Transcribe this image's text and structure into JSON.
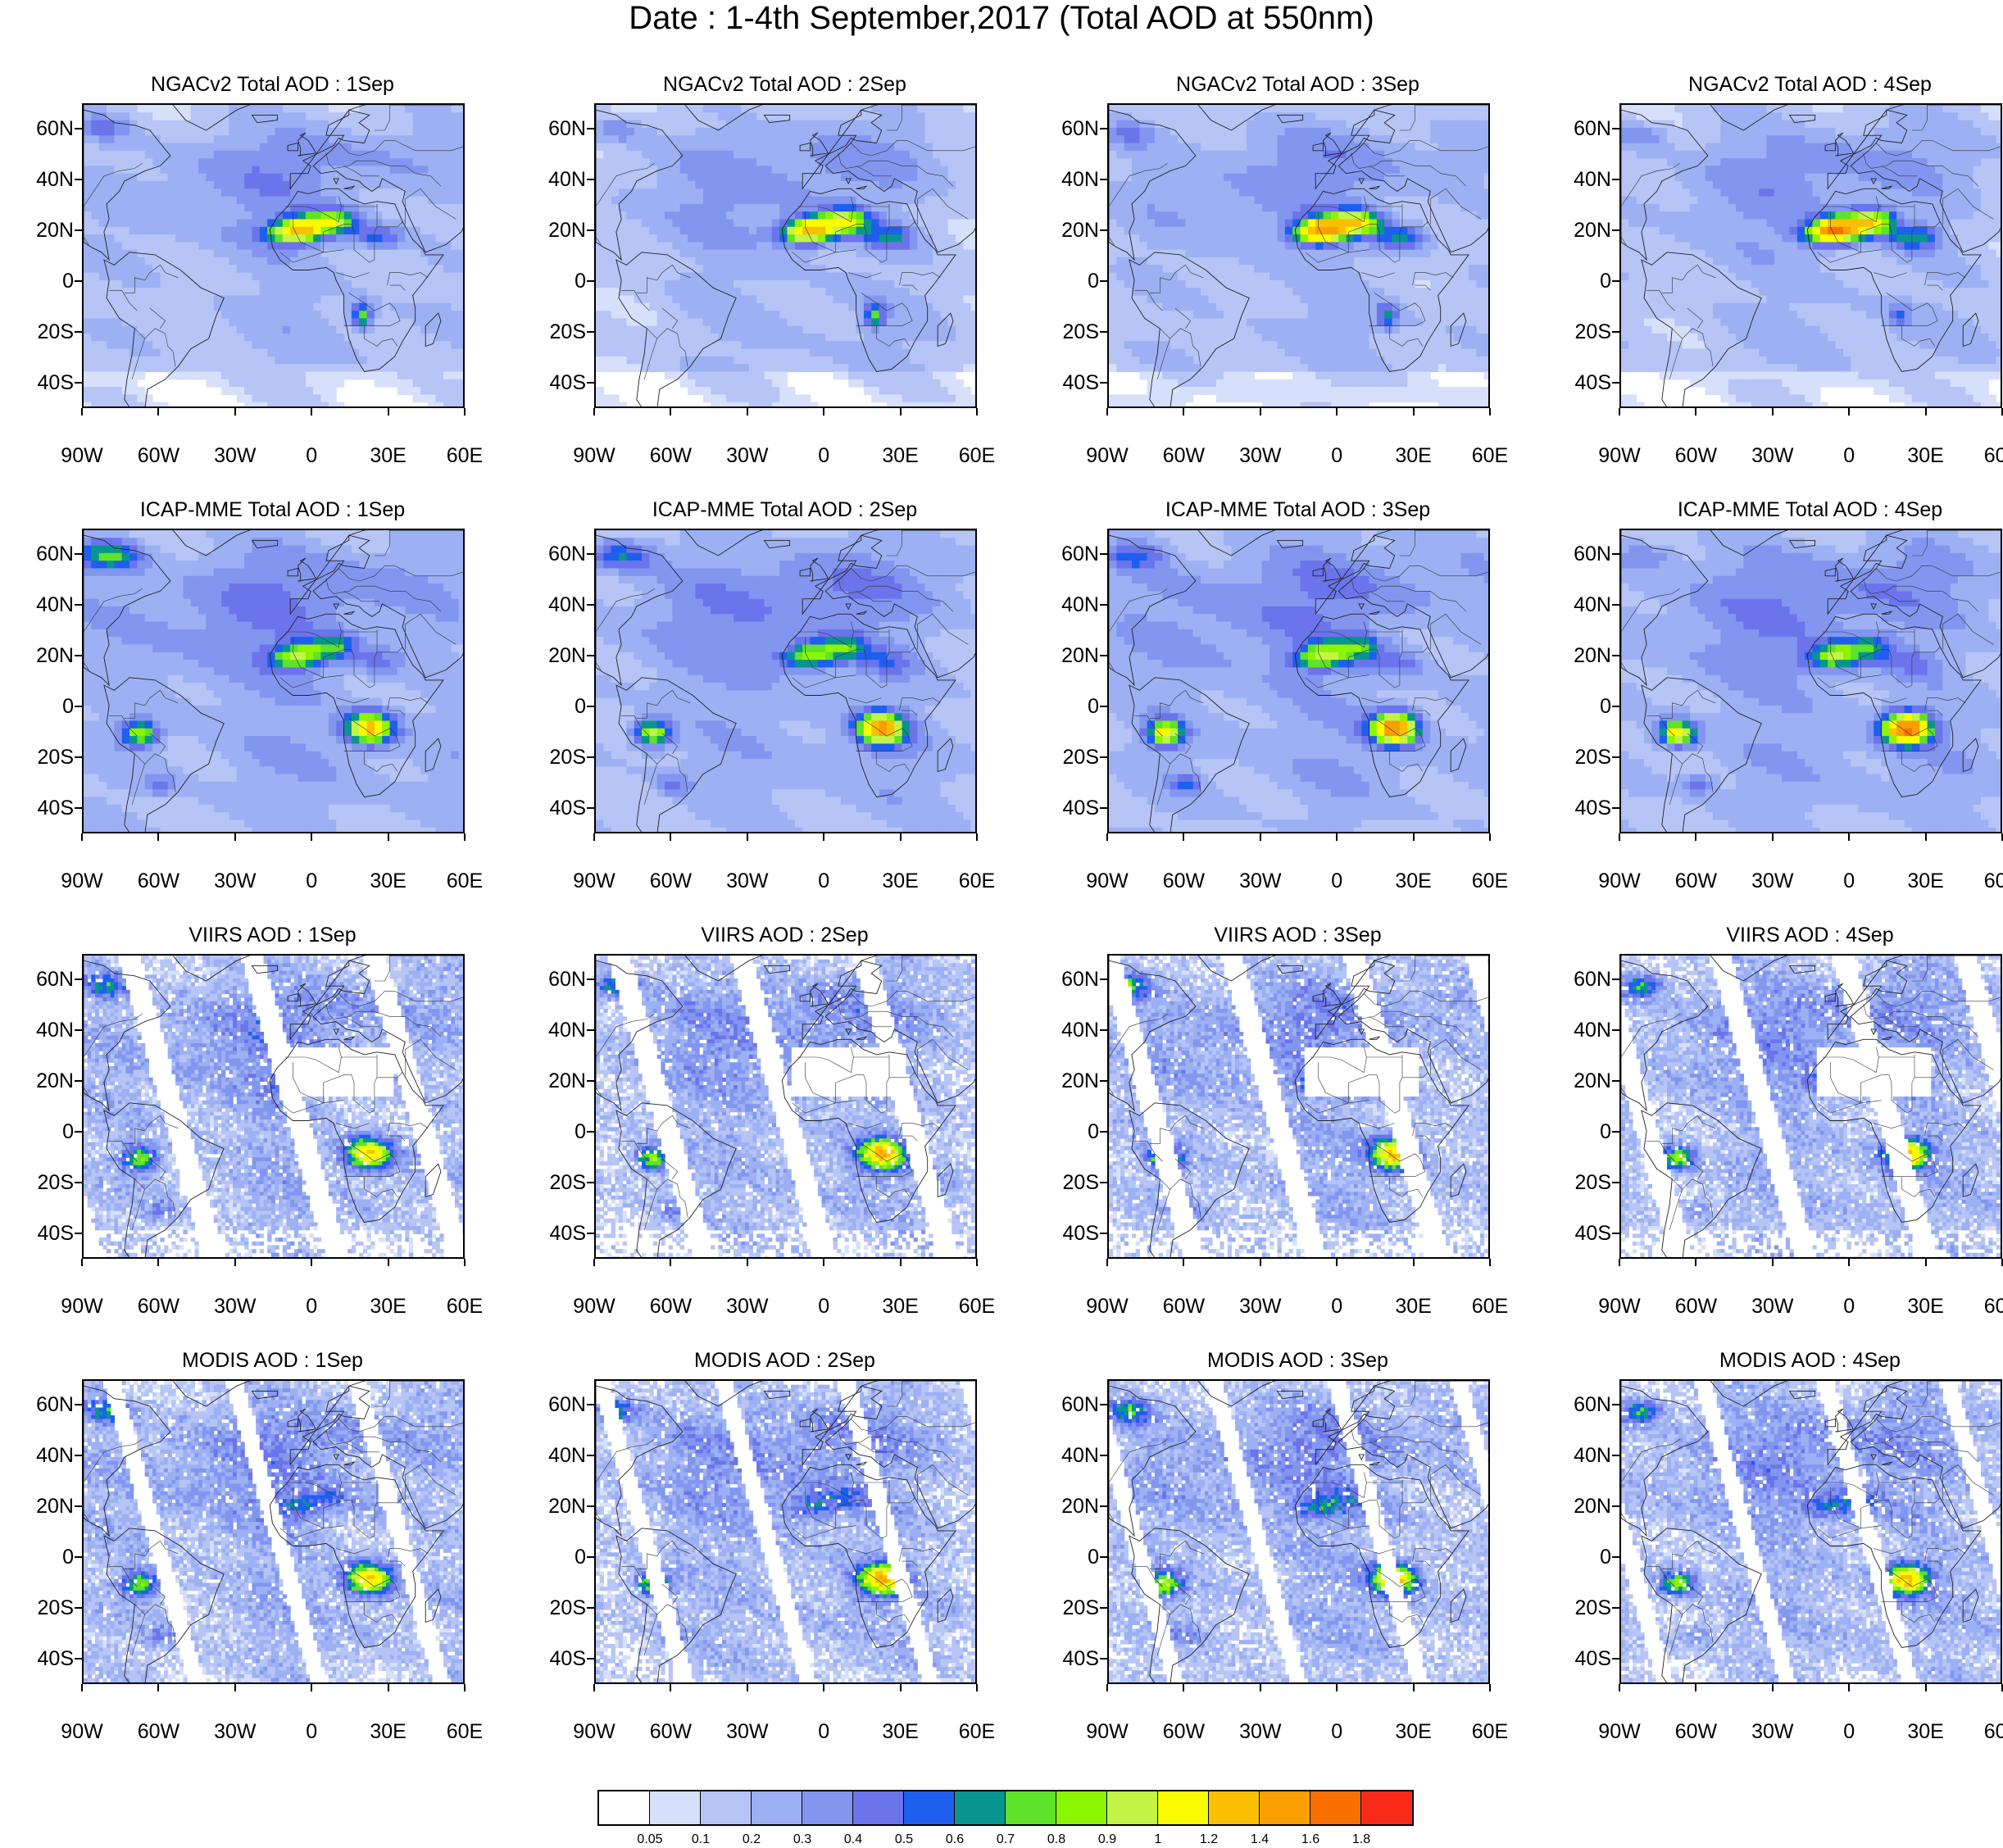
{
  "title": "Date : 1-4th September,2017 (Total AOD at 550nm)",
  "axis": {
    "x_labels": [
      "90W",
      "60W",
      "30W",
      "0",
      "30E",
      "60E"
    ],
    "y_labels": [
      "60N",
      "40N",
      "20N",
      "0",
      "20S",
      "40S"
    ]
  },
  "panels": [
    {
      "title": "NGACv2 Total AOD : 1Sep",
      "model": "NGACv2",
      "day": 1
    },
    {
      "title": "NGACv2 Total AOD : 2Sep",
      "model": "NGACv2",
      "day": 2
    },
    {
      "title": "NGACv2 Total AOD : 3Sep",
      "model": "NGACv2",
      "day": 3
    },
    {
      "title": "NGACv2 Total AOD : 4Sep",
      "model": "NGACv2",
      "day": 4
    },
    {
      "title": "ICAP-MME Total AOD : 1Sep",
      "model": "ICAP",
      "day": 1
    },
    {
      "title": "ICAP-MME Total AOD : 2Sep",
      "model": "ICAP",
      "day": 2
    },
    {
      "title": "ICAP-MME Total AOD : 3Sep",
      "model": "ICAP",
      "day": 3
    },
    {
      "title": "ICAP-MME Total AOD : 4Sep",
      "model": "ICAP",
      "day": 4
    },
    {
      "title": "VIIRS AOD : 1Sep",
      "model": "VIIRS",
      "day": 1
    },
    {
      "title": "VIIRS AOD : 2Sep",
      "model": "VIIRS",
      "day": 2
    },
    {
      "title": "VIIRS AOD : 3Sep",
      "model": "VIIRS",
      "day": 3
    },
    {
      "title": "VIIRS AOD : 4Sep",
      "model": "VIIRS",
      "day": 4
    },
    {
      "title": "MODIS AOD : 1Sep",
      "model": "MODIS",
      "day": 1
    },
    {
      "title": "MODIS AOD : 2Sep",
      "model": "MODIS",
      "day": 2
    },
    {
      "title": "MODIS AOD : 3Sep",
      "model": "MODIS",
      "day": 3
    },
    {
      "title": "MODIS AOD : 4Sep",
      "model": "MODIS",
      "day": 4
    }
  ],
  "colorbar": {
    "colors": [
      "#ffffff",
      "#d7e0fa",
      "#b6c4f6",
      "#9cb0f3",
      "#8296f0",
      "#6b74ea",
      "#1e5fef",
      "#09958f",
      "#5ee22a",
      "#8cf500",
      "#c2f545",
      "#fafa00",
      "#fac000",
      "#fa9f00",
      "#fa7000",
      "#fa2a18"
    ],
    "labels": [
      "0.05",
      "0.1",
      "0.2",
      "0.3",
      "0.4",
      "0.5",
      "0.6",
      "0.7",
      "0.8",
      "0.9",
      "1",
      "1.2",
      "1.4",
      "1.6",
      "1.8"
    ]
  }
}
